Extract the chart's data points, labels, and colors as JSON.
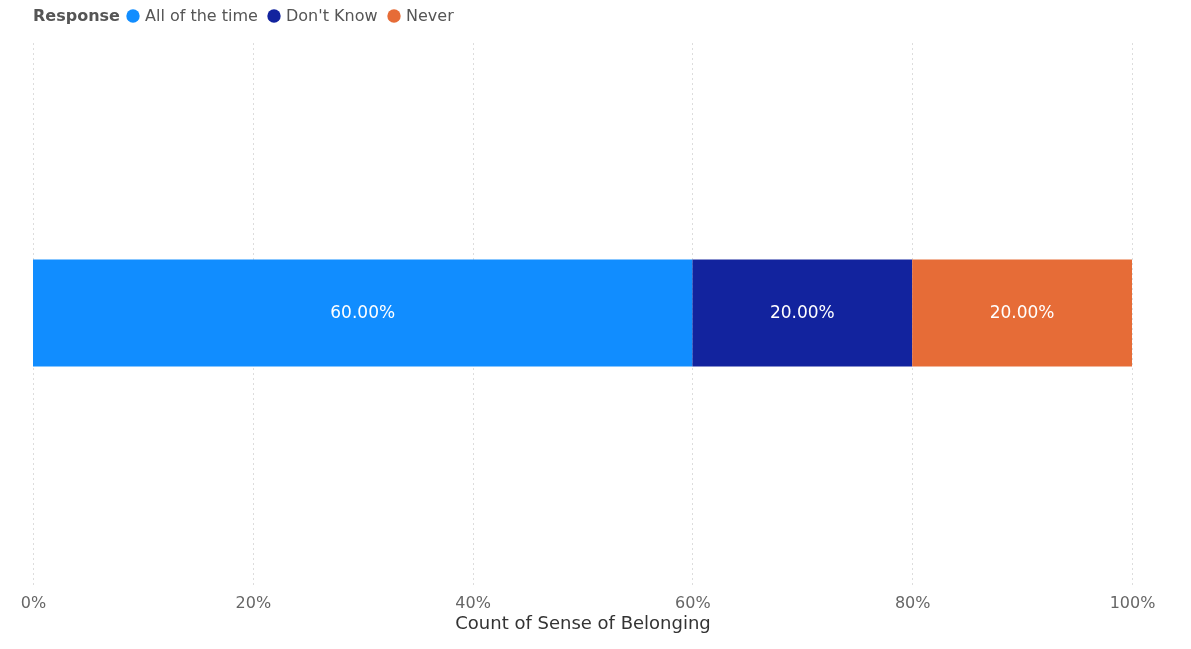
{
  "chart_data": {
    "type": "bar",
    "orientation": "horizontal",
    "stacked": true,
    "categories": [
      null
    ],
    "series": [
      {
        "name": "All of the time",
        "color": "#118dff",
        "values": [
          60
        ],
        "value_labels": [
          "60.00%"
        ]
      },
      {
        "name": "Don't Know",
        "color": "#12239e",
        "values": [
          20
        ],
        "value_labels": [
          "20.00%"
        ]
      },
      {
        "name": "Never",
        "color": "#e66c37",
        "values": [
          20
        ],
        "value_labels": [
          "20.00%"
        ]
      }
    ],
    "xlabel": "Count of Sense of Belonging",
    "legend_title": "Response",
    "legend": "top left",
    "grid": "x",
    "xlim": [
      0,
      100
    ],
    "xticks": [
      {
        "value": 0,
        "label": "0%"
      },
      {
        "value": 20,
        "label": "20%"
      },
      {
        "value": 40,
        "label": "40%"
      },
      {
        "value": 60,
        "label": "60%"
      },
      {
        "value": 80,
        "label": "80%"
      },
      {
        "value": 100,
        "label": "100%"
      }
    ]
  }
}
